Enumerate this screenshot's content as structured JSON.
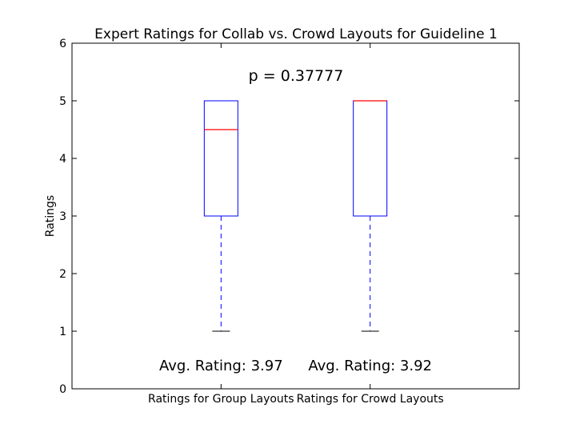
{
  "chart_data": {
    "type": "box",
    "title": "Expert Ratings for Collab vs. Crowd Layouts for Guideline 1",
    "xlabel": "",
    "ylabel": "Ratings",
    "ylim": [
      0,
      6
    ],
    "yticks": [
      0,
      1,
      2,
      3,
      4,
      5,
      6
    ],
    "grid": false,
    "categories": [
      "Ratings for Group Layouts",
      "Ratings for Crowd Layouts"
    ],
    "boxes": [
      {
        "category": "Ratings for Group Layouts",
        "whisker_low": 1,
        "q1": 3,
        "median": 4.5,
        "q3": 5,
        "whisker_high": 5
      },
      {
        "category": "Ratings for Crowd Layouts",
        "whisker_low": 1,
        "q1": 3,
        "median": 5,
        "q3": 5,
        "whisker_high": 5
      }
    ],
    "annotations": {
      "p_value": "p = 0.37777",
      "averages": [
        "Avg. Rating: 3.97",
        "Avg. Rating: 3.92"
      ]
    },
    "colors": {
      "box": "#0000ff",
      "median": "#ff0000",
      "whisker": "#0000ff",
      "cap": "#000000",
      "axes": "#000000"
    }
  }
}
